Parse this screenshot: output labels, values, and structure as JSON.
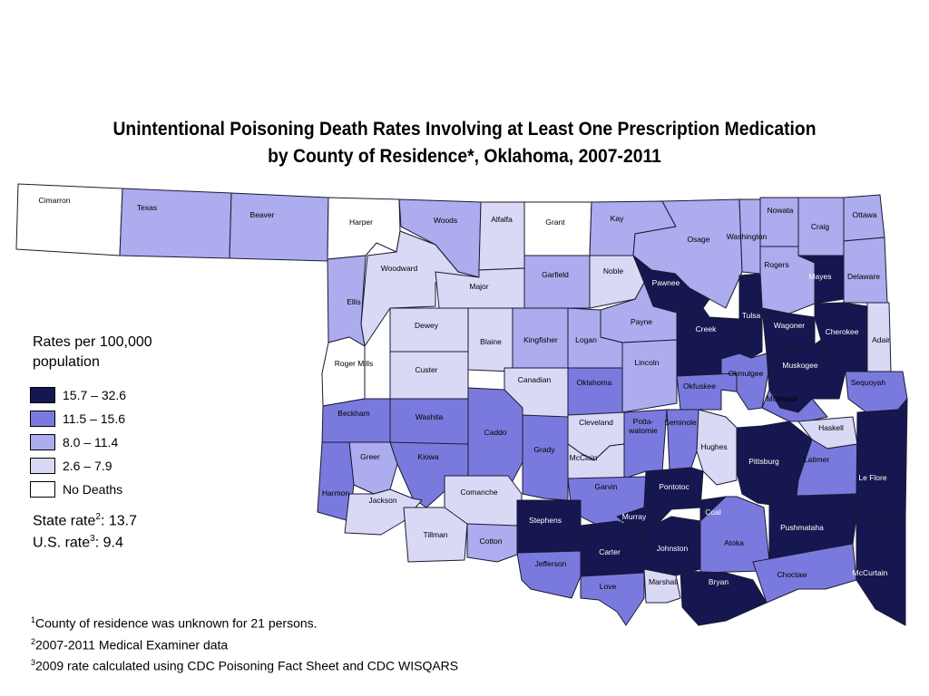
{
  "title": {
    "line1": "Unintentional Poisoning Death Rates Involving at Least One Prescription Medication",
    "line2": "by County of Residence*, Oklahoma, 2007-2011"
  },
  "colors": {
    "c4": "#161650",
    "c3": "#7a7ade",
    "c2": "#acacee",
    "c1": "#d9d9f6",
    "c0": "#ffffff"
  },
  "legend": {
    "title_line1": "Rates per 100,000",
    "title_line2": "population",
    "items": [
      {
        "label": "15.7 – 32.6",
        "cls": "c4"
      },
      {
        "label": "11.5 – 15.6",
        "cls": "c3"
      },
      {
        "label": "8.0 – 11.4",
        "cls": "c2"
      },
      {
        "label": "2.6 – 7.9",
        "cls": "c1"
      },
      {
        "label": "No Deaths",
        "cls": "c0"
      }
    ]
  },
  "state_rate": {
    "prefix": "State rate",
    "sup": "2",
    "value": ": 13.7"
  },
  "us_rate": {
    "prefix": "U.S. rate",
    "sup": "3",
    "value": ": 9.4"
  },
  "footnotes": [
    {
      "sup": "1",
      "text": "County of residence was unknown for 21 persons."
    },
    {
      "sup": "2",
      "text": "2007-2011 Medical Examiner data"
    },
    {
      "sup": "3",
      "text": "2009 rate calculated using CDC Poisoning Fact Sheet and CDC WISQARS"
    }
  ],
  "counties": [
    {
      "name": "Cimarron",
      "cls": "c0"
    },
    {
      "name": "Texas",
      "cls": "c2"
    },
    {
      "name": "Beaver",
      "cls": "c2"
    },
    {
      "name": "Harper",
      "cls": "c0"
    },
    {
      "name": "Woods",
      "cls": "c2"
    },
    {
      "name": "Alfalfa",
      "cls": "c1"
    },
    {
      "name": "Grant",
      "cls": "c0"
    },
    {
      "name": "Kay",
      "cls": "c2"
    },
    {
      "name": "Osage",
      "cls": "c2"
    },
    {
      "name": "Washington",
      "cls": "c2"
    },
    {
      "name": "Nowata",
      "cls": "c2"
    },
    {
      "name": "Craig",
      "cls": "c2"
    },
    {
      "name": "Ottawa",
      "cls": "c2"
    },
    {
      "name": "Woodward",
      "cls": "c1"
    },
    {
      "name": "Major",
      "cls": "c1"
    },
    {
      "name": "Garfield",
      "cls": "c2"
    },
    {
      "name": "Noble",
      "cls": "c1"
    },
    {
      "name": "Pawnee",
      "cls": "c4"
    },
    {
      "name": "Rogers",
      "cls": "c2"
    },
    {
      "name": "Mayes",
      "cls": "c4"
    },
    {
      "name": "Delaware",
      "cls": "c2"
    },
    {
      "name": "Ellis",
      "cls": "c2"
    },
    {
      "name": "Dewey",
      "cls": "c1"
    },
    {
      "name": "Blaine",
      "cls": "c1"
    },
    {
      "name": "Kingfisher",
      "cls": "c2"
    },
    {
      "name": "Logan",
      "cls": "c2"
    },
    {
      "name": "Payne",
      "cls": "c2"
    },
    {
      "name": "Creek",
      "cls": "c4"
    },
    {
      "name": "Tulsa",
      "cls": "c4"
    },
    {
      "name": "Wagoner",
      "cls": "c4"
    },
    {
      "name": "Cherokee",
      "cls": "c4"
    },
    {
      "name": "Adair",
      "cls": "c1"
    },
    {
      "name": "Roger Mills",
      "cls": "c0"
    },
    {
      "name": "Custer",
      "cls": "c1"
    },
    {
      "name": "Canadian",
      "cls": "c1"
    },
    {
      "name": "Oklahoma",
      "cls": "c3"
    },
    {
      "name": "Lincoln",
      "cls": "c2"
    },
    {
      "name": "Okmulgee",
      "cls": "c3"
    },
    {
      "name": "Okfuskee",
      "cls": "c3"
    },
    {
      "name": "Muskogee",
      "cls": "c4"
    },
    {
      "name": "Sequoyah",
      "cls": "c3"
    },
    {
      "name": "McIntosh",
      "cls": "c3"
    },
    {
      "name": "Beckham",
      "cls": "c3"
    },
    {
      "name": "Washita",
      "cls": "c3"
    },
    {
      "name": "Caddo",
      "cls": "c3"
    },
    {
      "name": "Grady",
      "cls": "c3"
    },
    {
      "name": "Cleveland",
      "cls": "c1"
    },
    {
      "name": "McClain",
      "cls": "c1"
    },
    {
      "name": "Potta-\nwatomie",
      "cls": "c3"
    },
    {
      "name": "Seminole",
      "cls": "c3"
    },
    {
      "name": "Hughes",
      "cls": "c1"
    },
    {
      "name": "Haskell",
      "cls": "c1"
    },
    {
      "name": "Pittsburg",
      "cls": "c4"
    },
    {
      "name": "Latimer",
      "cls": "c3"
    },
    {
      "name": "Le Flore",
      "cls": "c4"
    },
    {
      "name": "Greer",
      "cls": "c2"
    },
    {
      "name": "Harmon",
      "cls": "c3"
    },
    {
      "name": "Kiowa",
      "cls": "c3"
    },
    {
      "name": "Jackson",
      "cls": "c1"
    },
    {
      "name": "Comanche",
      "cls": "c1"
    },
    {
      "name": "Garvin",
      "cls": "c3"
    },
    {
      "name": "Pontotoc",
      "cls": "c4"
    },
    {
      "name": "Murray",
      "cls": "c4"
    },
    {
      "name": "Coal",
      "cls": "c4"
    },
    {
      "name": "Stephens",
      "cls": "c4"
    },
    {
      "name": "Tillman",
      "cls": "c1"
    },
    {
      "name": "Cotton",
      "cls": "c2"
    },
    {
      "name": "Carter",
      "cls": "c4"
    },
    {
      "name": "Johnston",
      "cls": "c4"
    },
    {
      "name": "Atoka",
      "cls": "c3"
    },
    {
      "name": "Pushmataha",
      "cls": "c4"
    },
    {
      "name": "Jefferson",
      "cls": "c3"
    },
    {
      "name": "Love",
      "cls": "c3"
    },
    {
      "name": "Marshall",
      "cls": "c1"
    },
    {
      "name": "Bryan",
      "cls": "c4"
    },
    {
      "name": "Choctaw",
      "cls": "c3"
    },
    {
      "name": "McCurtain",
      "cls": "c4"
    }
  ]
}
